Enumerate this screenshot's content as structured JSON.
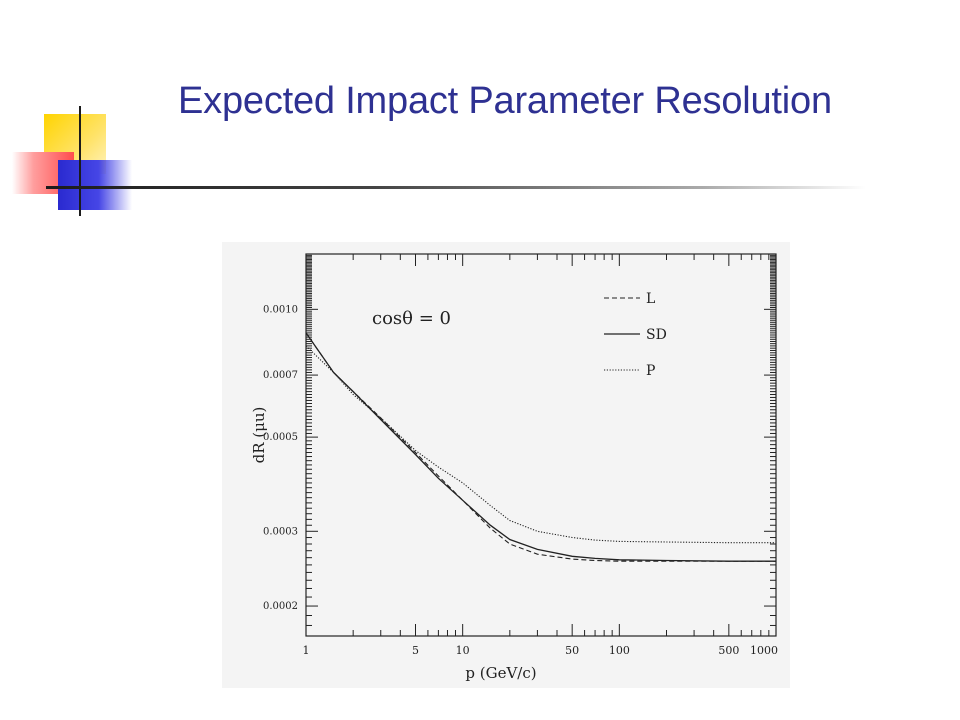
{
  "slide": {
    "title": "Expected Impact Parameter Resolution"
  },
  "chart_data": {
    "type": "line",
    "xlabel": "p (GeV/c)",
    "ylabel": "dR (μu)",
    "annotation": "cosθ = 0",
    "x_scale": "log",
    "y_scale": "log",
    "xlim": [
      1,
      1000
    ],
    "ylim": [
      0.00017,
      0.00135
    ],
    "x_tick_labels": [
      "1",
      "5",
      "10",
      "50",
      "100",
      "500",
      "1000"
    ],
    "x_tick_values": [
      1,
      5,
      10,
      50,
      100,
      500,
      1000
    ],
    "y_tick_labels": [
      "0.0002",
      "0.0003",
      "0.0005",
      "0.0007",
      "0.0010"
    ],
    "y_tick_values": [
      0.0002,
      0.0003,
      0.0005,
      0.0007,
      0.001
    ],
    "legend_position": "top-right",
    "grid": false,
    "series": [
      {
        "name": "L",
        "style": "dashed",
        "x": [
          1,
          1.5,
          2,
          3,
          5,
          7,
          10,
          15,
          20,
          30,
          50,
          70,
          100,
          200,
          500,
          1000
        ],
        "y": [
          0.00088,
          0.00071,
          0.00064,
          0.000555,
          0.00046,
          0.000405,
          0.000355,
          0.000305,
          0.00028,
          0.000265,
          0.000258,
          0.000256,
          0.000255,
          0.000255,
          0.000255,
          0.000255
        ]
      },
      {
        "name": "SD",
        "style": "solid",
        "x": [
          1,
          1.5,
          2,
          3,
          5,
          7,
          10,
          15,
          20,
          30,
          50,
          70,
          100,
          200,
          500,
          1000
        ],
        "y": [
          0.00088,
          0.00071,
          0.00064,
          0.00055,
          0.000455,
          0.0004,
          0.000355,
          0.00031,
          0.000287,
          0.000272,
          0.000262,
          0.000259,
          0.000257,
          0.000256,
          0.000255,
          0.000255
        ]
      },
      {
        "name": "P",
        "style": "dotted",
        "x": [
          1,
          1.5,
          2,
          3,
          5,
          7,
          10,
          15,
          20,
          30,
          50,
          70,
          100,
          200,
          500,
          1000
        ],
        "y": [
          0.00082,
          0.00071,
          0.00063,
          0.000555,
          0.000465,
          0.000425,
          0.00039,
          0.000345,
          0.000318,
          0.0003,
          0.00029,
          0.000286,
          0.000284,
          0.000283,
          0.000282,
          0.000282
        ]
      }
    ]
  }
}
